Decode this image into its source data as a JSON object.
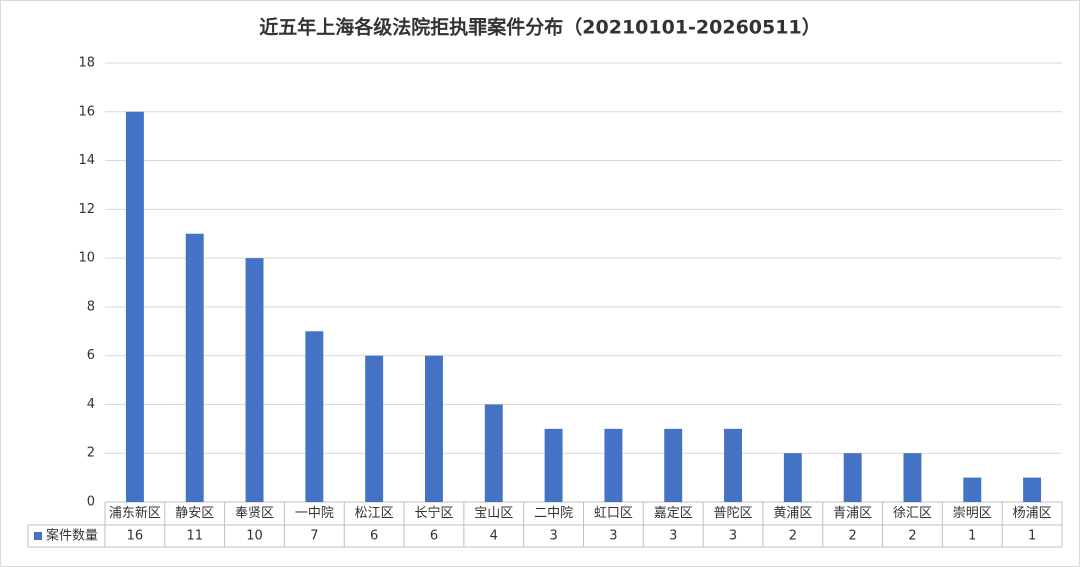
{
  "chart_data": {
    "type": "bar",
    "title": "近五年上海各级法院拒执罪案件分布（20210101-20260511）",
    "categories": [
      "浦东新区",
      "静安区",
      "奉贤区",
      "一中院",
      "松江区",
      "长宁区",
      "宝山区",
      "二中院",
      "虹口区",
      "嘉定区",
      "普陀区",
      "黄浦区",
      "青浦区",
      "徐汇区",
      "崇明区",
      "杨浦区"
    ],
    "series": [
      {
        "name": "案件数量",
        "color": "#4472c4",
        "values": [
          16,
          11,
          10,
          7,
          6,
          6,
          4,
          3,
          3,
          3,
          3,
          2,
          2,
          2,
          1,
          1
        ]
      }
    ],
    "ylim": [
      0,
      18
    ],
    "yticks": [
      0,
      2,
      4,
      6,
      8,
      10,
      12,
      14,
      16,
      18
    ],
    "grid": true,
    "data_table": true
  }
}
